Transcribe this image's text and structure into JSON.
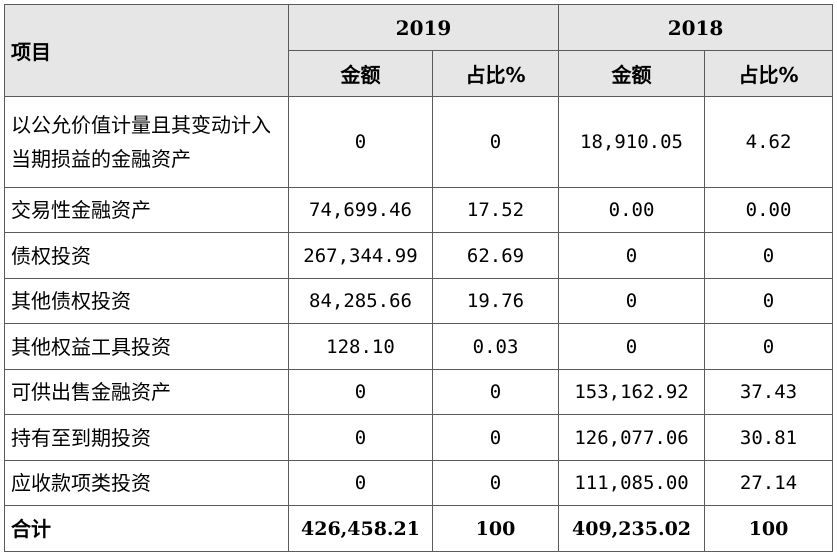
{
  "table": {
    "header": {
      "item": "项目",
      "year1": "2019",
      "year2": "2018",
      "amount": "金额",
      "ratio": "占比%"
    },
    "rows": [
      {
        "label": "以公允价值计量且其变动计入当期损益的金融资产",
        "amt2019": "0",
        "pct2019": "0",
        "amt2018": "18,910.05",
        "pct2018": "4.62"
      },
      {
        "label": "交易性金融资产",
        "amt2019": "74,699.46",
        "pct2019": "17.52",
        "amt2018": "0.00",
        "pct2018": "0.00"
      },
      {
        "label": "债权投资",
        "amt2019": "267,344.99",
        "pct2019": "62.69",
        "amt2018": "0",
        "pct2018": "0"
      },
      {
        "label": "其他债权投资",
        "amt2019": "84,285.66",
        "pct2019": "19.76",
        "amt2018": "0",
        "pct2018": "0"
      },
      {
        "label": "其他权益工具投资",
        "amt2019": "128.10",
        "pct2019": "0.03",
        "amt2018": "0",
        "pct2018": "0"
      },
      {
        "label": "可供出售金融资产",
        "amt2019": "0",
        "pct2019": "0",
        "amt2018": "153,162.92",
        "pct2018": "37.43"
      },
      {
        "label": "持有至到期投资",
        "amt2019": "0",
        "pct2019": "0",
        "amt2018": "126,077.06",
        "pct2018": "30.81"
      },
      {
        "label": "应收款项类投资",
        "amt2019": "0",
        "pct2019": "0",
        "amt2018": "111,085.00",
        "pct2018": "27.14"
      }
    ],
    "total": {
      "label": "合计",
      "amt2019": "426,458.21",
      "pct2019": "100",
      "amt2018": "409,235.02",
      "pct2018": "100"
    }
  }
}
